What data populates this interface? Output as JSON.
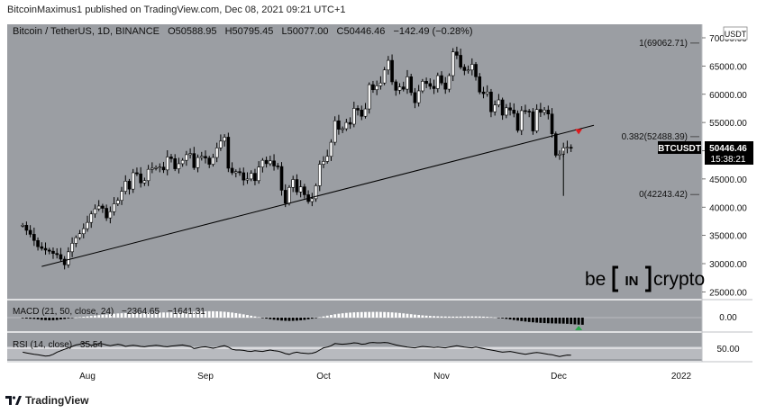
{
  "header": {
    "publish_line": "BitcoinMaximus1 published on TradingView.com, Dec 08, 2021 09:21 UTC+1"
  },
  "footer": {
    "brand": "TradingView"
  },
  "colors": {
    "panel_bg": "#9b9ea3",
    "candle_up": "#ffffff",
    "candle_down": "#000000",
    "trendline": "#000000",
    "resistance_marker": "#e0191c",
    "macd_marker": "#2aa84a",
    "price_label_bg": "#000000"
  },
  "main": {
    "symbol_line": {
      "symbol": "Bitcoin / TetherUS, 1D, BINANCE",
      "open": "O50588.95",
      "high": "H50795.45",
      "low": "L50077.00",
      "close": "C50446.46",
      "change": "−142.49 (−0.28%)"
    },
    "currency_badge": "USDT",
    "fib_levels": [
      {
        "label": "1(69062.71)",
        "value": 69062.71
      },
      {
        "label": "0.382(52488.39)",
        "value": 52488.39
      },
      {
        "label": "0(42243.42)",
        "value": 42243.42
      }
    ],
    "last_price": {
      "ticker": "BTCUSDT",
      "price": "50446.46",
      "countdown": "15:38:21"
    },
    "watermark": {
      "left": "be",
      "middle": "IN",
      "right": "crypto"
    },
    "macd": {
      "label": "MACD (21, 50, close, 24)",
      "value1": "−2364.65",
      "value2": "−1641.31"
    },
    "rsi": {
      "label": "RSI (14, close)",
      "value": "35.54"
    },
    "macd_axis_label": "0.00",
    "rsi_axis_label": "50.00"
  },
  "chart_data": {
    "type": "candlestick",
    "price_axis": {
      "ticks": [
        "25000.00",
        "30000.00",
        "35000.00",
        "40000.00",
        "45000.00",
        "50000.00",
        "55000.00",
        "60000.00",
        "65000.00",
        "70000.00"
      ],
      "ylim": [
        24000,
        73000
      ]
    },
    "x_axis": {
      "ticks": [
        "Aug",
        "Sep",
        "Oct",
        "Nov",
        "Dec",
        "2022"
      ]
    },
    "daily_closes": [
      36800,
      35900,
      35200,
      34100,
      33000,
      32700,
      32400,
      32200,
      31800,
      31600,
      30800,
      29800,
      32100,
      33600,
      34600,
      35300,
      36200,
      37300,
      38800,
      39700,
      40200,
      39800,
      38100,
      39200,
      40600,
      41200,
      42800,
      44600,
      43200,
      46100,
      45900,
      44300,
      44700,
      46700,
      46900,
      47000,
      47100,
      46600,
      48900,
      48600,
      46800,
      47700,
      48300,
      49300,
      49500,
      47000,
      48800,
      49000,
      48700,
      47600,
      48800,
      50500,
      51700,
      52400,
      46900,
      46100,
      46300,
      46100,
      44800,
      45000,
      46000,
      44700,
      47100,
      48300,
      47700,
      48200,
      47300,
      47200,
      43000,
      40700,
      43500,
      44900,
      42700,
      43600,
      42200,
      41000,
      41500,
      43800,
      47600,
      48100,
      49000,
      51500,
      55300,
      53800,
      53900,
      55000,
      54700,
      57500,
      57200,
      56100,
      57400,
      61700,
      60800,
      61500,
      62000,
      64300,
      66000,
      62200,
      60700,
      61300,
      60900,
      63100,
      60300,
      58500,
      60600,
      62300,
      61900,
      61400,
      61000,
      63300,
      62000,
      60900,
      63300,
      67500,
      66900,
      64800,
      64200,
      64300,
      65300,
      63100,
      60400,
      60100,
      60400,
      56900,
      58100,
      59000,
      56300,
      57600,
      57200,
      56600,
      53600,
      57100,
      57000,
      56900,
      53500,
      57300,
      56800,
      57200,
      56500,
      53000,
      49200,
      49400,
      50500,
      50600,
      50450
    ],
    "trendline": {
      "from": {
        "date": "2021-07-20",
        "price": 29500
      },
      "to": {
        "date": "2021-12-12",
        "price": 54500
      }
    },
    "resistance_marker": {
      "date": "2021-12-08",
      "price": 53200
    },
    "macd": {
      "histogram": [
        -200,
        -300,
        -360,
        -430,
        -560,
        -760,
        -840,
        -900,
        -860,
        -780,
        -600,
        -450,
        -250,
        -50,
        50,
        150,
        300,
        420,
        560,
        700,
        820,
        950,
        1050,
        1150,
        1300,
        1400,
        1460,
        1520,
        1560,
        1580,
        1590,
        1600,
        1590,
        1600,
        1630,
        1650,
        1700,
        1720,
        1730,
        1760,
        1790,
        1850,
        1890,
        1950,
        2000,
        2010,
        2040,
        2060,
        2100,
        2140,
        2130,
        2100,
        2050,
        1960,
        1840,
        1690,
        1510,
        1310,
        1100,
        880,
        640,
        400,
        150,
        -100,
        -320,
        -520,
        -700,
        -860,
        -980,
        -1060,
        -1100,
        -1060,
        -1000,
        -900,
        -760,
        -560,
        -340,
        -100,
        150,
        400,
        660,
        900,
        1120,
        1300,
        1450,
        1580,
        1680,
        1760,
        1820,
        1860,
        1880,
        1900,
        1910,
        1920,
        1900,
        1870,
        1820,
        1750,
        1660,
        1550,
        1420,
        1280,
        1140,
        1000,
        880,
        760,
        660,
        580,
        510,
        450,
        410,
        380,
        360,
        350,
        350,
        360,
        380,
        400,
        410,
        400,
        380,
        330,
        260,
        170,
        60,
        -80,
        -240,
        -420,
        -610,
        -800,
        -980,
        -1150,
        -1300,
        -1440,
        -1560,
        -1660,
        -1750,
        -1820,
        -1880,
        -1920,
        -1950,
        -1980,
        -2000,
        -2060,
        -2150,
        -2250,
        -2340,
        -2380
      ],
      "zero_label": "0.00"
    },
    "rsi": {
      "values": [
        44,
        42,
        40,
        38,
        37,
        35,
        33,
        34,
        38,
        44,
        48,
        52,
        56,
        60,
        64,
        66,
        70,
        68,
        63,
        65,
        68,
        67,
        64,
        62,
        64,
        66,
        64,
        60,
        62,
        63,
        62,
        60,
        59,
        61,
        62,
        63,
        62,
        60,
        59,
        61,
        62,
        63,
        64,
        62,
        60,
        54,
        56,
        58,
        59,
        57,
        55,
        57,
        60,
        62,
        58,
        52,
        50,
        50,
        49,
        47,
        46,
        48,
        47,
        46,
        48,
        50,
        48,
        47,
        44,
        40,
        38,
        42,
        44,
        42,
        41,
        40,
        41,
        44,
        50,
        56,
        58,
        62,
        68,
        67,
        66,
        67,
        68,
        70,
        69,
        66,
        67,
        70,
        71,
        70,
        70,
        71,
        70,
        67,
        64,
        62,
        60,
        58,
        57,
        56,
        58,
        60,
        59,
        58,
        57,
        58,
        57,
        56,
        58,
        60,
        62,
        60,
        58,
        57,
        56,
        58,
        56,
        54,
        52,
        50,
        48,
        46,
        44,
        45,
        46,
        44,
        42,
        40,
        38,
        40,
        42,
        43,
        42,
        40,
        38,
        37,
        34,
        32,
        34,
        36,
        35.54
      ],
      "level": 50
    }
  }
}
